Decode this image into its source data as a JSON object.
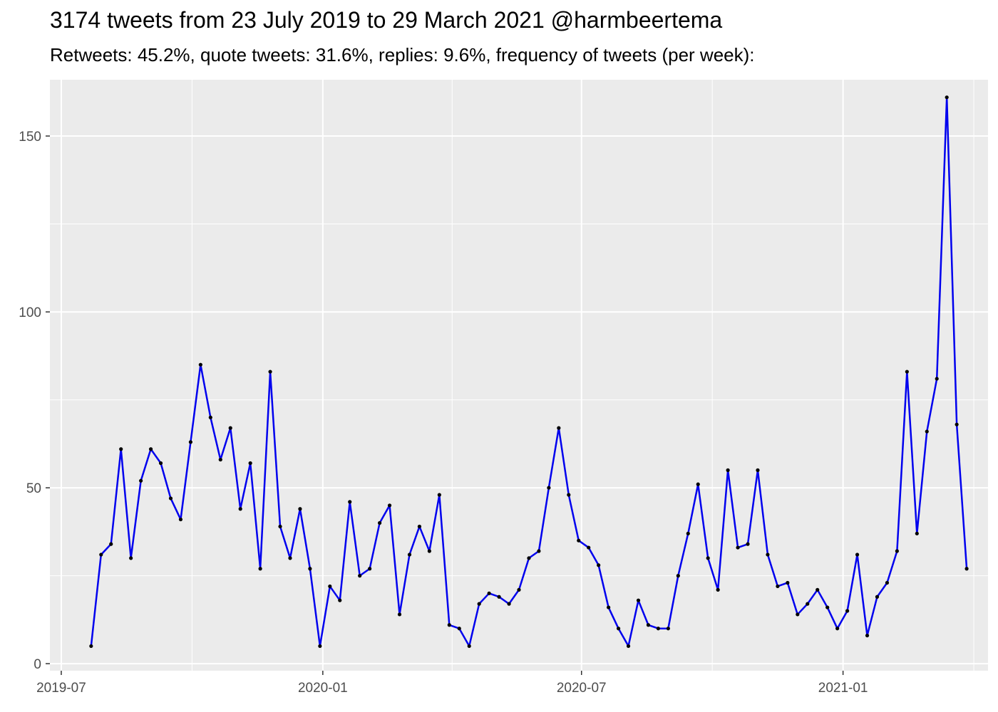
{
  "title": "3174 tweets from 23 July 2019 to 29 March 2021 @harmbeertema",
  "subtitle": "Retweets: 45.2%, quote tweets: 31.6%, replies: 9.6%, frequency of tweets (per week):",
  "chart_data": {
    "type": "line",
    "xlabel": "",
    "ylabel": "",
    "x_type": "date",
    "xlim": [
      "2019-06-23",
      "2021-04-13"
    ],
    "ylim": [
      -2,
      166
    ],
    "x_ticks": [
      {
        "date": "2019-07-01",
        "label": "2019-07"
      },
      {
        "date": "2020-01-01",
        "label": "2020-01"
      },
      {
        "date": "2020-07-01",
        "label": "2020-07"
      },
      {
        "date": "2021-01-01",
        "label": "2021-01"
      }
    ],
    "y_ticks": [
      0,
      50,
      100,
      150
    ],
    "grid": true,
    "line_color": "#0000ee",
    "point_color": "#000000",
    "panel_background": "#ebebeb",
    "series": [
      {
        "x": [
          "2019-07-22",
          "2019-07-29",
          "2019-08-05",
          "2019-08-12",
          "2019-08-19",
          "2019-08-26",
          "2019-09-02",
          "2019-09-09",
          "2019-09-16",
          "2019-09-23",
          "2019-09-30",
          "2019-10-07",
          "2019-10-14",
          "2019-10-21",
          "2019-10-28",
          "2019-11-04",
          "2019-11-11",
          "2019-11-18",
          "2019-11-25",
          "2019-12-02",
          "2019-12-09",
          "2019-12-16",
          "2019-12-23",
          "2019-12-30",
          "2020-01-06",
          "2020-01-13",
          "2020-01-20",
          "2020-01-27",
          "2020-02-03",
          "2020-02-10",
          "2020-02-17",
          "2020-02-24",
          "2020-03-02",
          "2020-03-09",
          "2020-03-16",
          "2020-03-23",
          "2020-03-30",
          "2020-04-06",
          "2020-04-13",
          "2020-04-20",
          "2020-04-27",
          "2020-05-04",
          "2020-05-11",
          "2020-05-18",
          "2020-05-25",
          "2020-06-01",
          "2020-06-08",
          "2020-06-15",
          "2020-06-22",
          "2020-06-29",
          "2020-07-06",
          "2020-07-13",
          "2020-07-20",
          "2020-07-27",
          "2020-08-03",
          "2020-08-10",
          "2020-08-17",
          "2020-08-24",
          "2020-08-31",
          "2020-09-07",
          "2020-09-14",
          "2020-09-21",
          "2020-09-28",
          "2020-10-05",
          "2020-10-12",
          "2020-10-19",
          "2020-10-26",
          "2020-11-02",
          "2020-11-09",
          "2020-11-16",
          "2020-11-23",
          "2020-11-30",
          "2020-12-07",
          "2020-12-14",
          "2020-12-21",
          "2020-12-28",
          "2021-01-04",
          "2021-01-11",
          "2021-01-18",
          "2021-01-25",
          "2021-02-01",
          "2021-02-08",
          "2021-02-15",
          "2021-02-22",
          "2021-03-01",
          "2021-03-08",
          "2021-03-15",
          "2021-03-22",
          "2021-03-29"
        ],
        "y": [
          5,
          31,
          34,
          61,
          30,
          52,
          61,
          57,
          47,
          41,
          63,
          85,
          70,
          58,
          67,
          44,
          57,
          27,
          83,
          39,
          30,
          44,
          27,
          5,
          22,
          18,
          46,
          25,
          27,
          40,
          45,
          14,
          31,
          39,
          32,
          48,
          11,
          10,
          5,
          17,
          20,
          19,
          17,
          21,
          30,
          32,
          50,
          67,
          48,
          35,
          33,
          28,
          16,
          10,
          5,
          18,
          11,
          10,
          10,
          25,
          37,
          51,
          30,
          21,
          55,
          33,
          34,
          55,
          31,
          22,
          23,
          14,
          17,
          21,
          16,
          10,
          15,
          31,
          8,
          19,
          23,
          32,
          83,
          37,
          66,
          81,
          161,
          68,
          27
        ]
      }
    ]
  }
}
